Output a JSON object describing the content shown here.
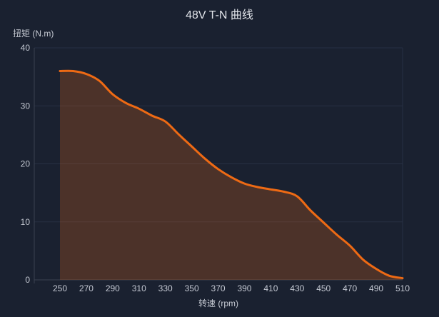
{
  "chart_data": {
    "type": "area",
    "title": "48V T-N 曲线",
    "xlabel": "转速 (rpm)",
    "ylabel": "扭矩 (N.m)",
    "x": [
      250,
      260,
      270,
      280,
      290,
      300,
      310,
      320,
      330,
      340,
      350,
      360,
      370,
      380,
      390,
      400,
      410,
      420,
      430,
      440,
      450,
      460,
      470,
      480,
      490,
      500,
      510
    ],
    "series": [
      {
        "name": "T-N",
        "values": [
          36,
          36,
          35.5,
          34.3,
          32,
          30.5,
          29.5,
          28.3,
          27.3,
          25.1,
          23,
          20.9,
          19.1,
          17.7,
          16.6,
          16,
          15.6,
          15.2,
          14.4,
          12,
          9.9,
          7.8,
          5.9,
          3.5,
          1.9,
          0.7,
          0.3
        ]
      }
    ],
    "xticks": [
      250,
      270,
      290,
      310,
      330,
      350,
      370,
      390,
      410,
      430,
      450,
      470,
      490,
      510
    ],
    "yticks": [
      0,
      10,
      20,
      30,
      40
    ],
    "ylim": [
      0,
      40
    ],
    "xlim": [
      230.5,
      510
    ],
    "grid": "horizontal",
    "legend": false
  },
  "colors": {
    "background": "#1a2130",
    "line": "#ee6a14",
    "fill": "rgba(238,106,20,0.24)",
    "grid": "#273043",
    "axis": "#3a4150",
    "tick_text": "#c4c8d2",
    "title_text": "#e2e5ea"
  }
}
